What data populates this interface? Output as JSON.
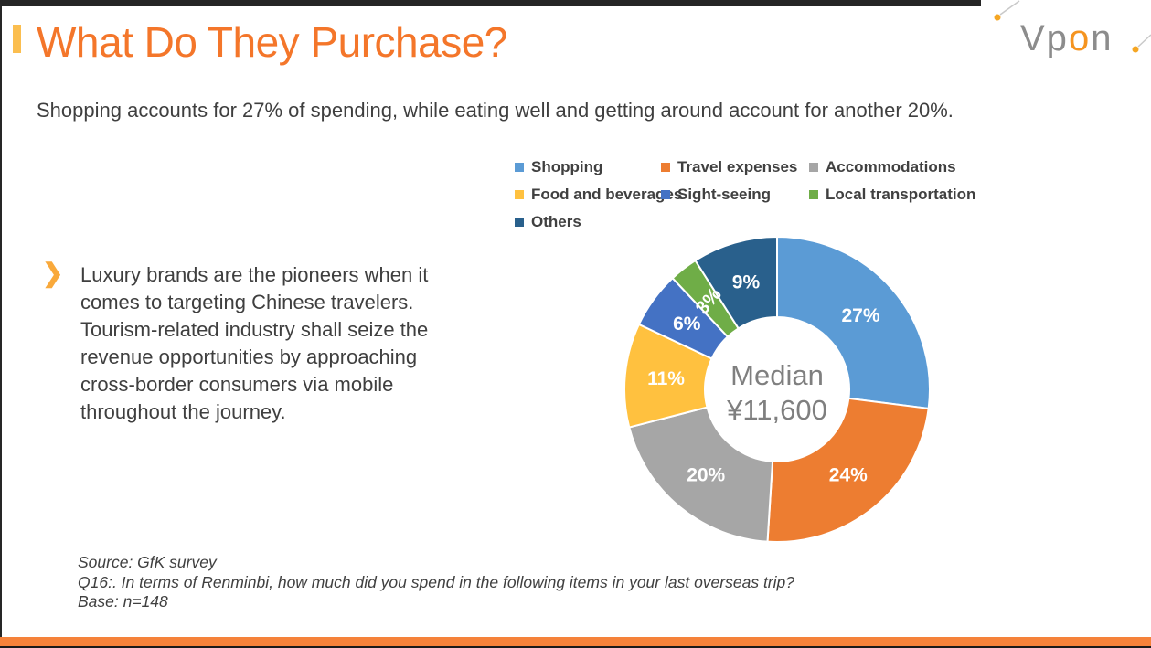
{
  "slide": {
    "title": "What Do They Purchase?",
    "subtitle": "Shopping accounts for 27% of spending, while eating well and getting around account for another 20%.",
    "body_text": "Luxury brands are the pioneers when it comes to targeting Chinese travelers. Tourism-related industry shall seize the revenue opportunities by approaching cross-border consumers via mobile throughout the journey.",
    "footnotes": [
      "Source: GfK survey",
      "Q16:. In terms of Renminbi, how much did you spend in the following items in your last overseas trip?",
      "Base: n=148"
    ],
    "logo": {
      "part1": "Vp",
      "part2": "o",
      "part3": "n"
    }
  },
  "colors": {
    "title_orange": "#F4762A",
    "title_bullet": "#FBBE4F",
    "chevron_amber": "#F9A93B",
    "body_text": "#3F3F3F",
    "legend_text": "#404040",
    "center_text_gray": "#7F7F7F",
    "bottom_bar_orange": "#F5823A",
    "frame_dark": "#262626",
    "logo_gray": "#8C8C8C",
    "logo_orange": "#F5941F",
    "deco_line_gray": "#C9C9C9",
    "deco_dot_orange": "#F5A623"
  },
  "chart_data": {
    "type": "pie",
    "donut": true,
    "title": "",
    "categories": [
      "Shopping",
      "Travel expenses",
      "Accommodations",
      "Food and beverages",
      "Sight-seeing",
      "Local transportation",
      "Others"
    ],
    "values": [
      27,
      24,
      20,
      11,
      6,
      3,
      9
    ],
    "labels": [
      "27%",
      "24%",
      "20%",
      "11%",
      "6%",
      "3%",
      "9%"
    ],
    "colors": [
      "#5B9BD5",
      "#ED7D31",
      "#A6A6A6",
      "#FFC13F",
      "#4472C4",
      "#6FAD47",
      "#29608C"
    ],
    "center_label": {
      "line1": "Median",
      "line2": "¥11,600"
    },
    "start_angle_deg": 0,
    "clockwise": true,
    "legend_position": "top",
    "legend_columns": 3,
    "label_rotation_deg": [
      0,
      0,
      0,
      0,
      0,
      -50,
      0
    ]
  }
}
